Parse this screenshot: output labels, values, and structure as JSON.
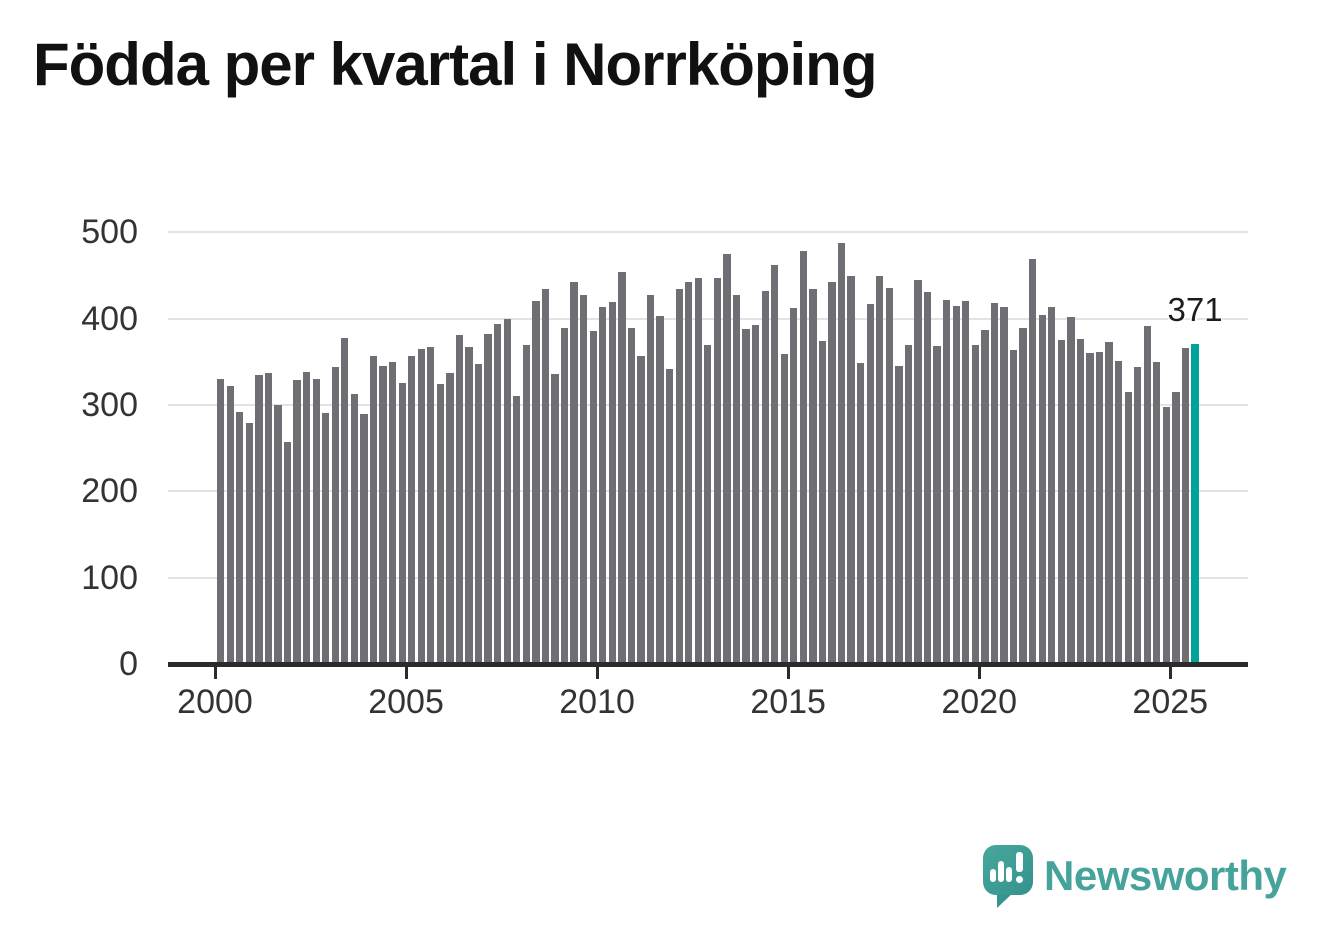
{
  "title": "Födda per kvartal i Norrköping",
  "chart_data": {
    "type": "bar",
    "title": "Födda per kvartal i Norrköping",
    "xlabel": "",
    "ylabel": "",
    "ylim": [
      0,
      500
    ],
    "y_ticks": [
      0,
      100,
      200,
      300,
      400,
      500
    ],
    "x_tick_labels": [
      "2000",
      "2005",
      "2010",
      "2015",
      "2020",
      "2025"
    ],
    "grid": true,
    "legend": "none",
    "bar_color": "#6e6e74",
    "highlight_color": "#00a29a",
    "grid_color": "#e3e3e3",
    "axis_color": "#2b2b2b",
    "highlight_index": 102,
    "annotation": "371",
    "categories": [
      "2000-Q1",
      "2000-Q2",
      "2000-Q3",
      "2000-Q4",
      "2001-Q1",
      "2001-Q2",
      "2001-Q3",
      "2001-Q4",
      "2002-Q1",
      "2002-Q2",
      "2002-Q3",
      "2002-Q4",
      "2003-Q1",
      "2003-Q2",
      "2003-Q3",
      "2003-Q4",
      "2004-Q1",
      "2004-Q2",
      "2004-Q3",
      "2004-Q4",
      "2005-Q1",
      "2005-Q2",
      "2005-Q3",
      "2005-Q4",
      "2006-Q1",
      "2006-Q2",
      "2006-Q3",
      "2006-Q4",
      "2007-Q1",
      "2007-Q2",
      "2007-Q3",
      "2007-Q4",
      "2008-Q1",
      "2008-Q2",
      "2008-Q3",
      "2008-Q4",
      "2009-Q1",
      "2009-Q2",
      "2009-Q3",
      "2009-Q4",
      "2010-Q1",
      "2010-Q2",
      "2010-Q3",
      "2010-Q4",
      "2011-Q1",
      "2011-Q2",
      "2011-Q3",
      "2011-Q4",
      "2012-Q1",
      "2012-Q2",
      "2012-Q3",
      "2012-Q4",
      "2013-Q1",
      "2013-Q2",
      "2013-Q3",
      "2013-Q4",
      "2014-Q1",
      "2014-Q2",
      "2014-Q3",
      "2014-Q4",
      "2015-Q1",
      "2015-Q2",
      "2015-Q3",
      "2015-Q4",
      "2016-Q1",
      "2016-Q2",
      "2016-Q3",
      "2016-Q4",
      "2017-Q1",
      "2017-Q2",
      "2017-Q3",
      "2017-Q4",
      "2018-Q1",
      "2018-Q2",
      "2018-Q3",
      "2018-Q4",
      "2019-Q1",
      "2019-Q2",
      "2019-Q3",
      "2019-Q4",
      "2020-Q1",
      "2020-Q2",
      "2020-Q3",
      "2020-Q4",
      "2021-Q1",
      "2021-Q2",
      "2021-Q3",
      "2021-Q4",
      "2022-Q1",
      "2022-Q2",
      "2022-Q3",
      "2022-Q4",
      "2023-Q1",
      "2023-Q2",
      "2023-Q3",
      "2023-Q4",
      "2024-Q1",
      "2024-Q2",
      "2024-Q3",
      "2024-Q4",
      "2025-Q1",
      "2025-Q2",
      "2025-Q3"
    ],
    "values": [
      330,
      322,
      292,
      279,
      335,
      337,
      300,
      257,
      329,
      338,
      330,
      291,
      344,
      378,
      313,
      290,
      357,
      345,
      350,
      326,
      357,
      365,
      367,
      324,
      337,
      381,
      367,
      347,
      382,
      394,
      400,
      310,
      369,
      421,
      435,
      336,
      389,
      442,
      427,
      386,
      414,
      419,
      454,
      389,
      357,
      427,
      403,
      342,
      434,
      443,
      447,
      370,
      447,
      475,
      428,
      388,
      393,
      432,
      462,
      359,
      412,
      478,
      435,
      374,
      443,
      488,
      450,
      349,
      417,
      450,
      436,
      345,
      369,
      445,
      431,
      368,
      422,
      415,
      420,
      369,
      387,
      418,
      413,
      364,
      389,
      469,
      404,
      413,
      375,
      402,
      376,
      360,
      362,
      373,
      351,
      315,
      344,
      392,
      350,
      298,
      315,
      366,
      371
    ]
  },
  "branding": {
    "wordmark": "Newsworthy",
    "logo_icon": "speech-bubble-bar-chart-exclamation-icon",
    "brand_color": "#45a39c"
  }
}
